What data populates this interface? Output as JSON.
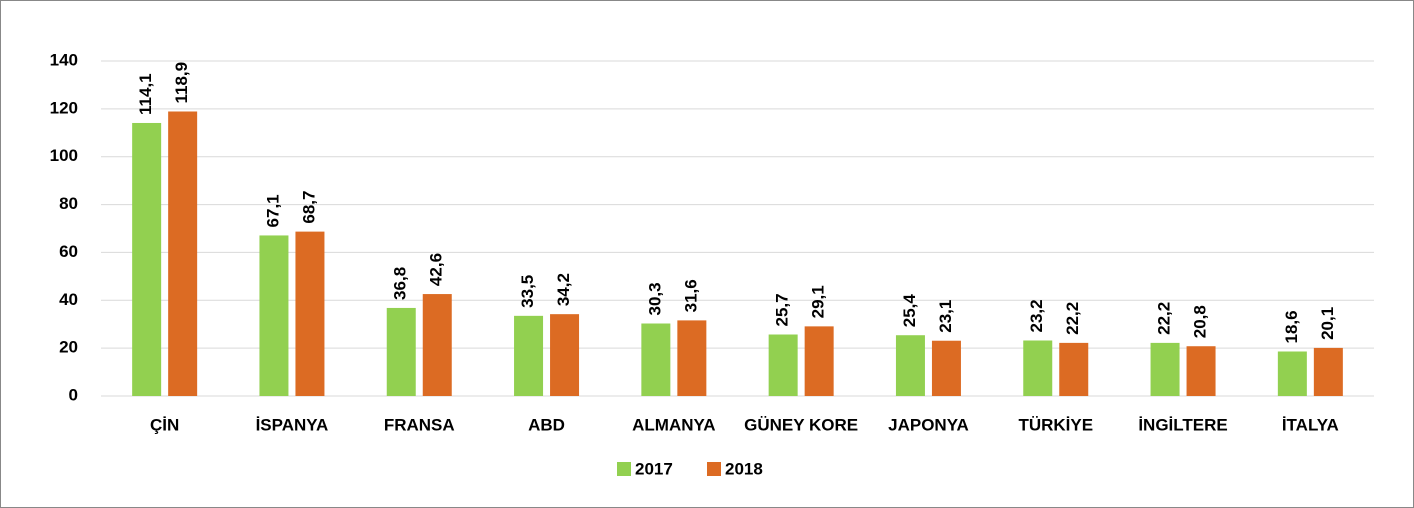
{
  "chart_data": {
    "type": "bar",
    "categories": [
      "ÇİN",
      "İSPANYA",
      "FRANSA",
      "ABD",
      "ALMANYA",
      "GÜNEY KORE",
      "JAPONYA",
      "TÜRKİYE",
      "İNGİLTERE",
      "İTALYA"
    ],
    "series": [
      {
        "name": "2017",
        "color": "#92d050",
        "values": [
          114.1,
          67.1,
          36.8,
          33.5,
          30.3,
          25.7,
          25.4,
          23.2,
          22.2,
          18.6
        ],
        "value_labels": [
          "114,1",
          "67,1",
          "36,8",
          "33,5",
          "30,3",
          "25,7",
          "25,4",
          "23,2",
          "22,2",
          "18,6"
        ]
      },
      {
        "name": "2018",
        "color": "#dc6b23",
        "values": [
          118.9,
          68.7,
          42.6,
          34.2,
          31.6,
          29.1,
          23.1,
          22.2,
          20.8,
          20.1
        ],
        "value_labels": [
          "118,9",
          "68,7",
          "42,6",
          "34,2",
          "31,6",
          "29,1",
          "23,1",
          "22,2",
          "20,8",
          "20,1"
        ]
      }
    ],
    "ylim": [
      0,
      140
    ],
    "yticks": [
      0,
      20,
      40,
      60,
      80,
      100,
      120,
      140
    ],
    "grid": true,
    "legend": "bottom"
  }
}
